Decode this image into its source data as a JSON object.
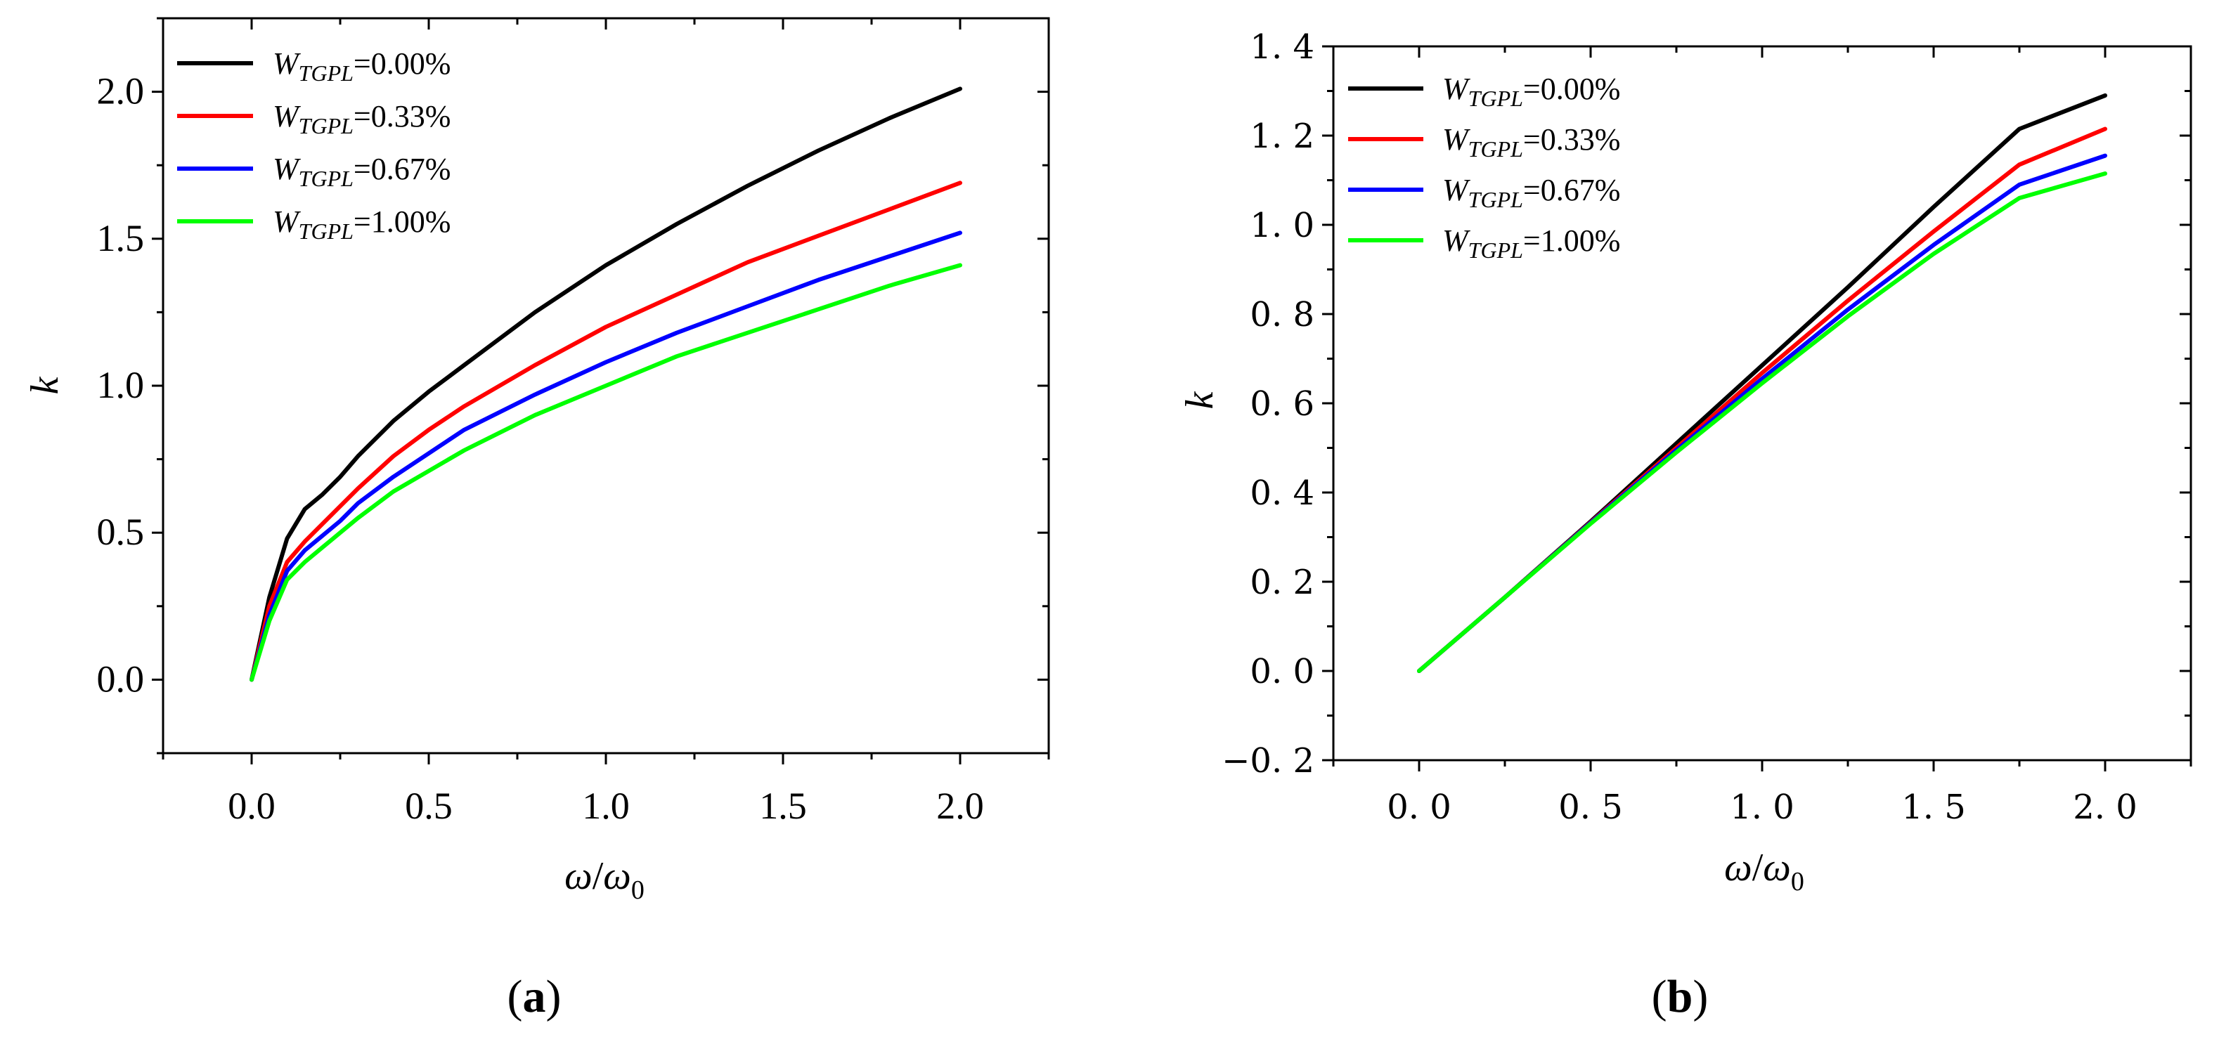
{
  "colors": {
    "W0": "#000000",
    "W033": "#ff0000",
    "W067": "#0000ff",
    "W1": "#00ff00"
  },
  "chart_data": [
    {
      "type": "line",
      "panel": "(a)",
      "panel_label": {
        "open": "(",
        "letter": "a",
        "close": ")"
      },
      "title": "",
      "xlabel": "ω/ω0",
      "xlabel_parts": {
        "omega": "ω",
        "slash": "/",
        "omega_sub_base": "ω",
        "sub": "0"
      },
      "ylabel": "k",
      "xlim": [
        -0.25,
        2.25
      ],
      "ylim": [
        -0.25,
        2.25
      ],
      "xticks": [
        0.0,
        0.5,
        1.0,
        1.5,
        2.0
      ],
      "xtick_labels": [
        "0.0",
        "0.5",
        "1.0",
        "1.5",
        "2.0"
      ],
      "yticks": [
        0.0,
        0.5,
        1.0,
        1.5,
        2.0
      ],
      "ytick_labels": [
        "0.0",
        "0.5",
        "1.0",
        "1.5",
        "2.0"
      ],
      "legend_position": "top-left",
      "series": [
        {
          "name": "W_TGPL=0.00%",
          "legend": {
            "var": "W",
            "sub": "TGPL",
            "value": "=0.00%"
          },
          "color_key": "W0",
          "x": [
            0,
            0.05,
            0.1,
            0.15,
            0.2,
            0.25,
            0.3,
            0.4,
            0.5,
            0.6,
            0.8,
            1.0,
            1.2,
            1.4,
            1.6,
            1.8,
            2.0
          ],
          "y": [
            0,
            0.28,
            0.48,
            0.58,
            0.63,
            0.69,
            0.76,
            0.88,
            0.98,
            1.07,
            1.25,
            1.41,
            1.55,
            1.68,
            1.8,
            1.91,
            2.01
          ]
        },
        {
          "name": "W_TGPL=0.33%",
          "legend": {
            "var": "W",
            "sub": "TGPL",
            "value": "=0.33%"
          },
          "color_key": "W033",
          "x": [
            0,
            0.05,
            0.1,
            0.15,
            0.2,
            0.25,
            0.3,
            0.4,
            0.5,
            0.6,
            0.8,
            1.0,
            1.2,
            1.4,
            1.6,
            1.8,
            2.0
          ],
          "y": [
            0,
            0.25,
            0.4,
            0.47,
            0.53,
            0.59,
            0.65,
            0.76,
            0.85,
            0.93,
            1.07,
            1.2,
            1.31,
            1.42,
            1.51,
            1.6,
            1.69
          ]
        },
        {
          "name": "W_TGPL=0.67%",
          "legend": {
            "var": "W",
            "sub": "TGPL",
            "value": "=0.67%"
          },
          "color_key": "W067",
          "x": [
            0,
            0.05,
            0.1,
            0.15,
            0.2,
            0.25,
            0.3,
            0.4,
            0.5,
            0.6,
            0.8,
            1.0,
            1.2,
            1.4,
            1.6,
            1.8,
            2.0
          ],
          "y": [
            0,
            0.22,
            0.37,
            0.44,
            0.49,
            0.54,
            0.6,
            0.69,
            0.77,
            0.85,
            0.97,
            1.08,
            1.18,
            1.27,
            1.36,
            1.44,
            1.52
          ]
        },
        {
          "name": "W_TGPL=1.00%",
          "legend": {
            "var": "W",
            "sub": "TGPL",
            "value": "=1.00%"
          },
          "color_key": "W1",
          "x": [
            0,
            0.05,
            0.1,
            0.15,
            0.2,
            0.25,
            0.3,
            0.4,
            0.5,
            0.6,
            0.8,
            1.0,
            1.2,
            1.4,
            1.6,
            1.8,
            2.0
          ],
          "y": [
            0,
            0.2,
            0.34,
            0.4,
            0.45,
            0.5,
            0.55,
            0.64,
            0.71,
            0.78,
            0.9,
            1.0,
            1.1,
            1.18,
            1.26,
            1.34,
            1.41
          ]
        }
      ]
    },
    {
      "type": "line",
      "panel": "(b)",
      "panel_label": {
        "open": "(",
        "letter": "b",
        "close": ")"
      },
      "title": "",
      "xlabel": "ω/ω0",
      "xlabel_parts": {
        "omega": "ω",
        "slash": "/",
        "omega_sub_base": "ω",
        "sub": "0"
      },
      "ylabel": "k",
      "xlim": [
        -0.25,
        2.25
      ],
      "ylim": [
        -0.2,
        1.4
      ],
      "xticks": [
        0.0,
        0.5,
        1.0,
        1.5,
        2.0
      ],
      "xtick_labels": [
        "0. 0",
        "0. 5",
        "1. 0",
        "1. 5",
        "2. 0"
      ],
      "yticks": [
        -0.2,
        0.0,
        0.2,
        0.4,
        0.6,
        0.8,
        1.0,
        1.2,
        1.4
      ],
      "ytick_labels": [
        "−0. 2",
        "0. 0",
        "0. 2",
        "0. 4",
        "0. 6",
        "0. 8",
        "1. 0",
        "1. 2",
        "1. 4"
      ],
      "legend_position": "top-left",
      "series": [
        {
          "name": "W_TGPL=0.00%",
          "legend": {
            "var": "W",
            "sub": "TGPL",
            "value": "=0.00%"
          },
          "color_key": "W0",
          "x": [
            0,
            0.25,
            0.5,
            0.75,
            1.0,
            1.25,
            1.5,
            1.75,
            2.0
          ],
          "y": [
            0,
            0.165,
            0.335,
            0.51,
            0.685,
            0.86,
            1.04,
            1.215,
            1.29
          ]
        },
        {
          "name": "W_TGPL=0.33%",
          "legend": {
            "var": "W",
            "sub": "TGPL",
            "value": "=0.33%"
          },
          "color_key": "W033",
          "x": [
            0,
            0.25,
            0.5,
            0.75,
            1.0,
            1.25,
            1.5,
            1.75,
            2.0
          ],
          "y": [
            0,
            0.165,
            0.333,
            0.5,
            0.668,
            0.83,
            0.985,
            1.135,
            1.215
          ]
        },
        {
          "name": "W_TGPL=0.67%",
          "legend": {
            "var": "W",
            "sub": "TGPL",
            "value": "=0.67%"
          },
          "color_key": "W067",
          "x": [
            0,
            0.25,
            0.5,
            0.75,
            1.0,
            1.25,
            1.5,
            1.75,
            2.0
          ],
          "y": [
            0,
            0.165,
            0.332,
            0.495,
            0.655,
            0.81,
            0.955,
            1.09,
            1.155
          ]
        },
        {
          "name": "W_TGPL=1.00%",
          "legend": {
            "var": "W",
            "sub": "TGPL",
            "value": "=1.00%"
          },
          "color_key": "W1",
          "x": [
            0,
            0.25,
            0.5,
            0.75,
            1.0,
            1.25,
            1.5,
            1.75,
            2.0
          ],
          "y": [
            0,
            0.165,
            0.33,
            0.49,
            0.645,
            0.795,
            0.935,
            1.06,
            1.115
          ]
        }
      ]
    }
  ]
}
